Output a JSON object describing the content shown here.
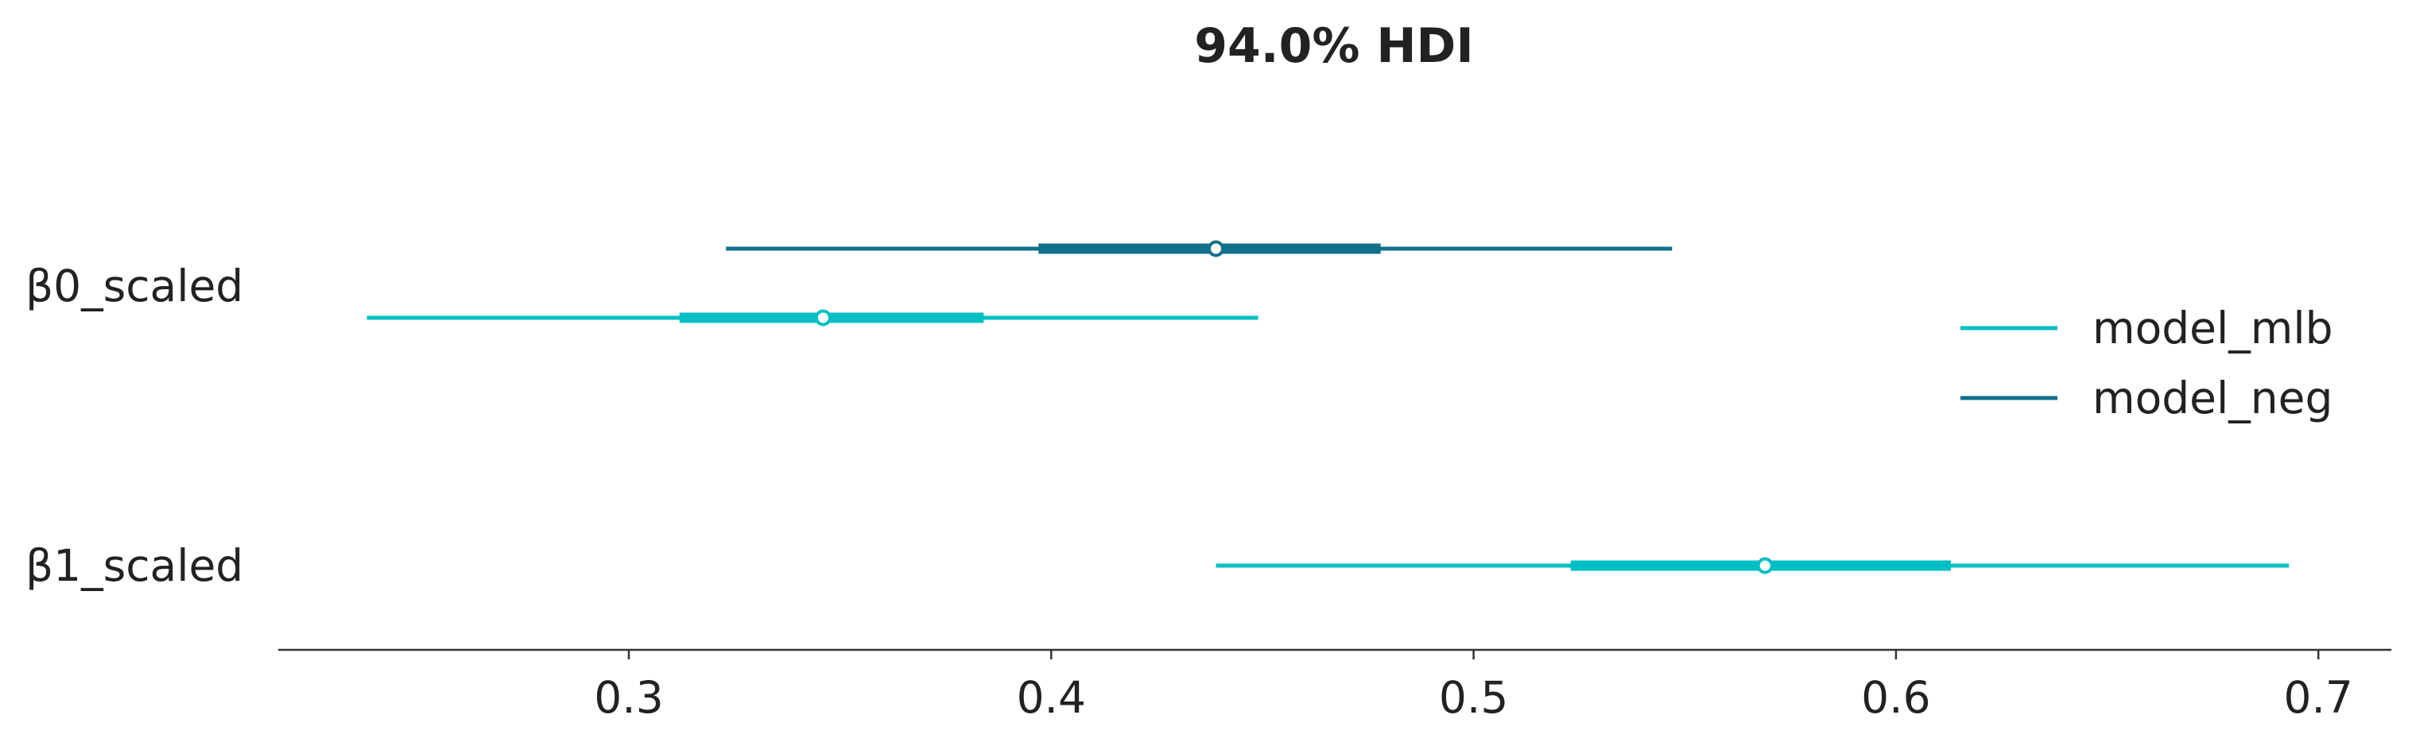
{
  "chart_data": {
    "type": "forest",
    "title": "94.0% HDI",
    "xlabel": "",
    "ylabel": "",
    "xlim": [
      0.217,
      0.72
    ],
    "xticks": [
      0.3,
      0.4,
      0.5,
      0.6,
      0.7
    ],
    "xtick_labels": [
      "0.3",
      "0.4",
      "0.5",
      "0.6",
      "0.7"
    ],
    "grid": false,
    "legend_position": "right",
    "parameters": [
      "β0_scaled",
      "β1_scaled"
    ],
    "series": [
      {
        "name": "model_mlb",
        "color": "#00BFC4",
        "estimates": [
          {
            "parameter": "β0_scaled",
            "hdi_low": 0.238,
            "hdi_high": 0.449,
            "iqr_low": 0.312,
            "iqr_high": 0.384,
            "median": 0.346
          },
          {
            "parameter": "β1_scaled",
            "hdi_low": 0.439,
            "hdi_high": 0.693,
            "iqr_low": 0.523,
            "iqr_high": 0.613,
            "median": 0.569
          }
        ]
      },
      {
        "name": "model_neg",
        "color": "#11708A",
        "estimates": [
          {
            "parameter": "β0_scaled",
            "hdi_low": 0.323,
            "hdi_high": 0.547,
            "iqr_low": 0.397,
            "iqr_high": 0.478,
            "median": 0.439
          }
        ]
      }
    ]
  }
}
